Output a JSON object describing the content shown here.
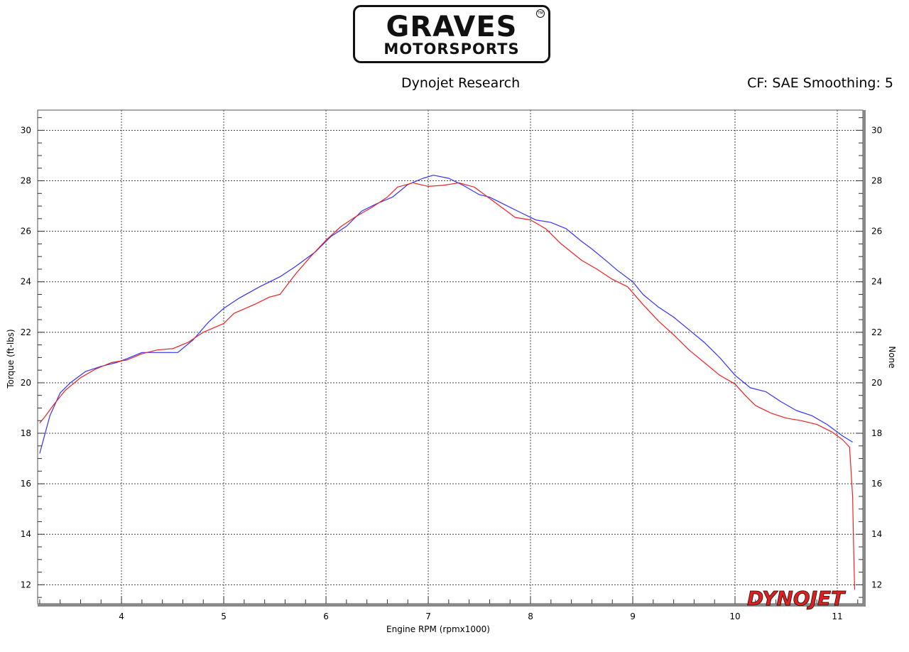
{
  "logo": {
    "line1": "GRAVES",
    "line2": "MOTORSPORTS",
    "tm": "TM"
  },
  "header": {
    "left": "Dynojet Research",
    "right": "CF: SAE Smoothing: 5"
  },
  "watermark": {
    "text": "DYNOJET"
  },
  "colors": {
    "series1": "#3333ff",
    "series2": "#ee2222",
    "grid": "#444444",
    "axis": "#555555"
  },
  "chart_data": {
    "type": "line",
    "title": "",
    "xlabel": "Engine RPM (rpmx1000)",
    "ylabel": "Torque (ft-lbs)",
    "ylabel_right": "None",
    "xlim": [
      3.18,
      11.25
    ],
    "ylim": [
      11.25,
      30.8
    ],
    "xticks": [
      4,
      5,
      6,
      7,
      8,
      9,
      10,
      11
    ],
    "yticks": [
      12,
      14,
      16,
      18,
      20,
      22,
      24,
      26,
      28,
      30
    ],
    "grid": true,
    "series": [
      {
        "color": "#3333ff",
        "points": [
          [
            3.2,
            17.2
          ],
          [
            3.3,
            18.7
          ],
          [
            3.4,
            19.6
          ],
          [
            3.5,
            20.0
          ],
          [
            3.65,
            20.45
          ],
          [
            3.8,
            20.65
          ],
          [
            3.95,
            20.8
          ],
          [
            4.05,
            20.95
          ],
          [
            4.2,
            21.2
          ],
          [
            4.35,
            21.2
          ],
          [
            4.55,
            21.2
          ],
          [
            4.7,
            21.7
          ],
          [
            4.85,
            22.4
          ],
          [
            5.0,
            22.95
          ],
          [
            5.15,
            23.35
          ],
          [
            5.35,
            23.8
          ],
          [
            5.55,
            24.2
          ],
          [
            5.7,
            24.6
          ],
          [
            5.9,
            25.2
          ],
          [
            6.05,
            25.8
          ],
          [
            6.2,
            26.2
          ],
          [
            6.35,
            26.8
          ],
          [
            6.5,
            27.1
          ],
          [
            6.65,
            27.35
          ],
          [
            6.8,
            27.85
          ],
          [
            6.95,
            28.1
          ],
          [
            7.05,
            28.22
          ],
          [
            7.2,
            28.1
          ],
          [
            7.35,
            27.8
          ],
          [
            7.5,
            27.45
          ],
          [
            7.6,
            27.35
          ],
          [
            7.75,
            27.05
          ],
          [
            7.9,
            26.75
          ],
          [
            8.05,
            26.45
          ],
          [
            8.2,
            26.35
          ],
          [
            8.35,
            26.1
          ],
          [
            8.5,
            25.6
          ],
          [
            8.6,
            25.3
          ],
          [
            8.75,
            24.8
          ],
          [
            8.85,
            24.45
          ],
          [
            9.0,
            24.0
          ],
          [
            9.1,
            23.5
          ],
          [
            9.25,
            23.0
          ],
          [
            9.4,
            22.6
          ],
          [
            9.55,
            22.1
          ],
          [
            9.7,
            21.6
          ],
          [
            9.85,
            21.0
          ],
          [
            10.0,
            20.3
          ],
          [
            10.15,
            19.8
          ],
          [
            10.3,
            19.65
          ],
          [
            10.45,
            19.25
          ],
          [
            10.6,
            18.9
          ],
          [
            10.75,
            18.7
          ],
          [
            10.9,
            18.35
          ],
          [
            11.05,
            17.9
          ],
          [
            11.15,
            17.65
          ]
        ]
      },
      {
        "color": "#ee2222",
        "points": [
          [
            3.2,
            18.4
          ],
          [
            3.25,
            18.65
          ],
          [
            3.35,
            19.2
          ],
          [
            3.45,
            19.7
          ],
          [
            3.6,
            20.2
          ],
          [
            3.75,
            20.55
          ],
          [
            3.9,
            20.8
          ],
          [
            4.05,
            20.9
          ],
          [
            4.2,
            21.15
          ],
          [
            4.35,
            21.3
          ],
          [
            4.5,
            21.35
          ],
          [
            4.65,
            21.6
          ],
          [
            4.8,
            22.0
          ],
          [
            5.0,
            22.35
          ],
          [
            5.1,
            22.75
          ],
          [
            5.3,
            23.1
          ],
          [
            5.45,
            23.4
          ],
          [
            5.55,
            23.5
          ],
          [
            5.7,
            24.3
          ],
          [
            5.85,
            25.0
          ],
          [
            6.0,
            25.65
          ],
          [
            6.15,
            26.2
          ],
          [
            6.3,
            26.6
          ],
          [
            6.45,
            26.95
          ],
          [
            6.6,
            27.35
          ],
          [
            6.7,
            27.75
          ],
          [
            6.85,
            27.92
          ],
          [
            7.0,
            27.78
          ],
          [
            7.15,
            27.82
          ],
          [
            7.3,
            27.92
          ],
          [
            7.45,
            27.75
          ],
          [
            7.6,
            27.3
          ],
          [
            7.75,
            26.85
          ],
          [
            7.85,
            26.55
          ],
          [
            8.0,
            26.45
          ],
          [
            8.15,
            26.1
          ],
          [
            8.3,
            25.5
          ],
          [
            8.5,
            24.85
          ],
          [
            8.65,
            24.5
          ],
          [
            8.8,
            24.1
          ],
          [
            8.95,
            23.8
          ],
          [
            9.1,
            23.1
          ],
          [
            9.25,
            22.45
          ],
          [
            9.4,
            21.9
          ],
          [
            9.55,
            21.3
          ],
          [
            9.7,
            20.8
          ],
          [
            9.85,
            20.3
          ],
          [
            10.0,
            19.95
          ],
          [
            10.1,
            19.5
          ],
          [
            10.2,
            19.1
          ],
          [
            10.35,
            18.8
          ],
          [
            10.5,
            18.6
          ],
          [
            10.65,
            18.5
          ],
          [
            10.8,
            18.35
          ],
          [
            10.95,
            18.05
          ],
          [
            11.05,
            17.75
          ],
          [
            11.12,
            17.45
          ],
          [
            11.15,
            15.5
          ],
          [
            11.16,
            13.5
          ],
          [
            11.17,
            11.8
          ]
        ]
      }
    ]
  }
}
